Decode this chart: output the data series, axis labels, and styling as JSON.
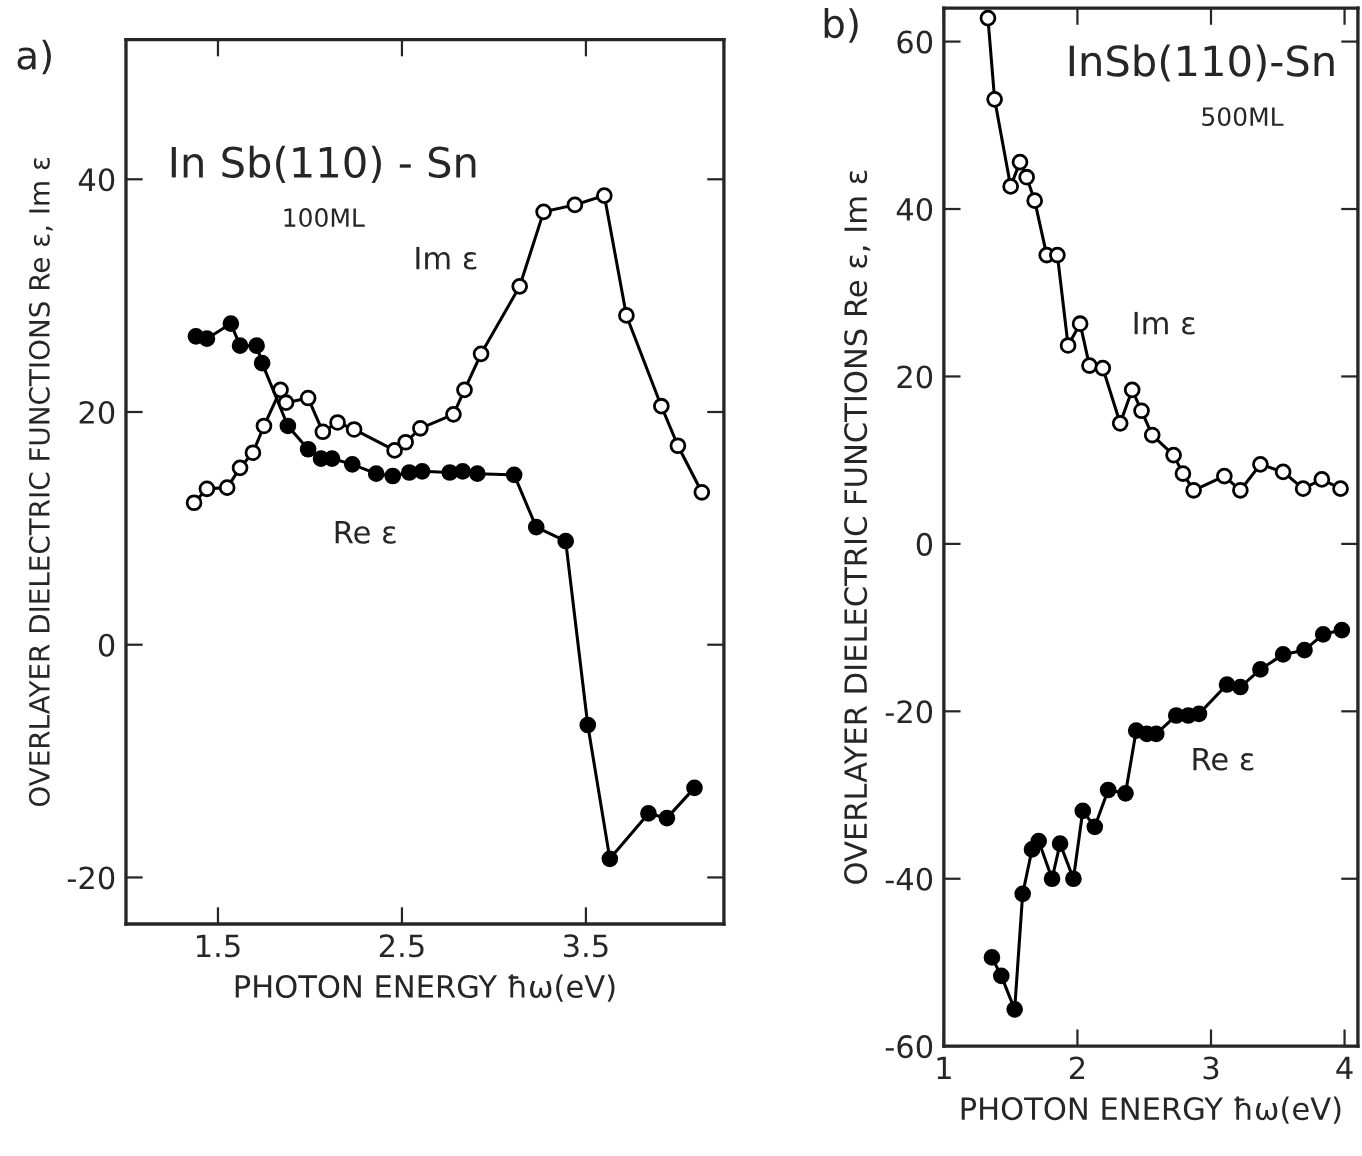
{
  "chart_data": [
    {
      "type": "line",
      "title": "In Sb(110) - Sn",
      "subtitle": "100ML",
      "xlabel": "PHOTON ENERGY ħω(eV)",
      "ylabel": "OVERLAYER DIELECTRIC FUNCTIONS Re ε, Im ε",
      "xlim": [
        1.0,
        4.25
      ],
      "ylim": [
        -24,
        52
      ],
      "xticks": [
        1.5,
        2.5,
        3.5
      ],
      "yticks": [
        -20,
        0,
        20,
        40
      ],
      "marker": "circle",
      "grid": false,
      "legend": false,
      "annotations": [
        "a)"
      ],
      "series": [
        {
          "name": "Im ε",
          "color": "#000000",
          "x": [
            1.37,
            1.44,
            1.55,
            1.62,
            1.69,
            1.75,
            1.84,
            1.87,
            1.99,
            2.07,
            2.15,
            2.24,
            2.46,
            2.52,
            2.6,
            2.78,
            2.84,
            2.93,
            3.14,
            3.27,
            3.44,
            3.6,
            3.72,
            3.91,
            4.0,
            4.13
          ],
          "values": [
            12.2,
            13.4,
            13.5,
            15.2,
            16.5,
            18.8,
            21.9,
            20.8,
            21.2,
            18.3,
            19.1,
            18.5,
            16.7,
            17.4,
            18.6,
            19.8,
            21.9,
            25.0,
            30.8,
            37.2,
            37.8,
            38.6,
            28.3,
            20.5,
            17.1,
            13.1
          ]
        },
        {
          "name": "Re ε",
          "color": "#000000",
          "x": [
            1.38,
            1.44,
            1.57,
            1.62,
            1.71,
            1.74,
            1.88,
            1.99,
            2.06,
            2.12,
            2.23,
            2.36,
            2.45,
            2.54,
            2.61,
            2.76,
            2.83,
            2.91,
            3.11,
            3.23,
            3.39,
            3.51,
            3.63,
            3.84,
            3.94,
            4.09
          ],
          "values": [
            26.5,
            26.3,
            27.6,
            25.7,
            25.7,
            24.2,
            18.8,
            16.8,
            16.0,
            16.0,
            15.5,
            14.7,
            14.5,
            14.8,
            14.9,
            14.8,
            14.9,
            14.7,
            14.6,
            10.1,
            8.9,
            -6.9,
            -18.4,
            -14.5,
            -14.9,
            -12.3
          ]
        }
      ]
    },
    {
      "type": "line",
      "title": "InSb(110)-Sn",
      "subtitle": "500ML",
      "xlabel": "PHOTON ENERGY ħω(eV)",
      "ylabel": "OVERLAYER DIELECTRIC FUNCTIONS Re ε, Im ε",
      "xlim": [
        1.0,
        4.1
      ],
      "ylim": [
        -60,
        64
      ],
      "xticks": [
        1,
        2,
        3,
        4
      ],
      "yticks": [
        -60,
        -40,
        -20,
        0,
        20,
        40,
        60
      ],
      "marker": "circle",
      "grid": false,
      "legend": false,
      "annotations": [
        "b)"
      ],
      "series": [
        {
          "name": "Im ε",
          "color": "#000000",
          "x": [
            1.33,
            1.38,
            1.5,
            1.57,
            1.62,
            1.68,
            1.77,
            1.85,
            1.93,
            2.02,
            2.09,
            2.19,
            2.32,
            2.41,
            2.48,
            2.56,
            2.72,
            2.79,
            2.87,
            3.1,
            3.22,
            3.37,
            3.54,
            3.69,
            3.83,
            3.97
          ],
          "values": [
            62.8,
            53.1,
            42.7,
            45.6,
            43.8,
            41.0,
            34.5,
            34.5,
            23.7,
            26.3,
            21.3,
            21.0,
            14.4,
            18.4,
            15.9,
            13.0,
            10.6,
            8.4,
            6.4,
            8.1,
            6.4,
            9.5,
            8.6,
            6.6,
            7.7,
            6.6
          ]
        },
        {
          "name": "Re ε",
          "color": "#000000",
          "x": [
            1.36,
            1.43,
            1.53,
            1.59,
            1.66,
            1.71,
            1.81,
            1.87,
            1.97,
            2.04,
            2.13,
            2.23,
            2.36,
            2.44,
            2.52,
            2.59,
            2.74,
            2.83,
            2.91,
            3.12,
            3.22,
            3.37,
            3.54,
            3.7,
            3.84,
            3.98
          ],
          "values": [
            -49.4,
            -51.6,
            -55.6,
            -41.8,
            -36.5,
            -35.5,
            -40.0,
            -35.8,
            -40.0,
            -31.9,
            -33.8,
            -29.4,
            -29.8,
            -22.3,
            -22.7,
            -22.7,
            -20.5,
            -20.5,
            -20.3,
            -16.8,
            -17.1,
            -15.0,
            -13.2,
            -12.7,
            -10.8,
            -10.3
          ]
        }
      ]
    }
  ]
}
